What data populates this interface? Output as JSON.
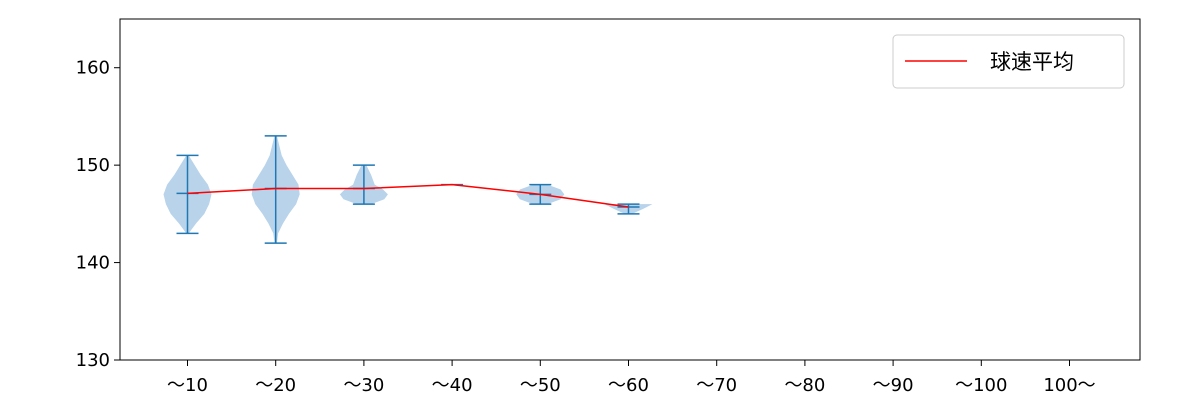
{
  "chart_data": {
    "type": "violin",
    "categories": [
      "〜10",
      "〜20",
      "〜30",
      "〜40",
      "〜50",
      "〜60",
      "〜70",
      "〜80",
      "〜90",
      "〜100",
      "100〜"
    ],
    "ylim": [
      130,
      165
    ],
    "yticks": [
      130,
      140,
      150,
      160
    ],
    "grid": false,
    "legend_position": "top-right",
    "colors": {
      "violin_fill": "#b8d3ea",
      "whisker": "#1f77b4",
      "mean_line": "#ff0000",
      "axes": "#000000"
    },
    "violins": [
      {
        "category": "〜10",
        "min": 143,
        "max": 151,
        "mean": 147.1,
        "density": [
          [
            143,
            0.05
          ],
          [
            144,
            0.35
          ],
          [
            145,
            0.7
          ],
          [
            146,
            0.9
          ],
          [
            147,
            1.0
          ],
          [
            148,
            0.85
          ],
          [
            149,
            0.55
          ],
          [
            150,
            0.3
          ],
          [
            151,
            0.05
          ]
        ]
      },
      {
        "category": "〜20",
        "min": 142,
        "max": 153,
        "mean": 147.6,
        "density": [
          [
            142,
            0.05
          ],
          [
            143,
            0.1
          ],
          [
            144,
            0.3
          ],
          [
            145,
            0.55
          ],
          [
            146,
            0.85
          ],
          [
            147,
            1.0
          ],
          [
            148,
            0.95
          ],
          [
            149,
            0.7
          ],
          [
            150,
            0.45
          ],
          [
            151,
            0.25
          ],
          [
            152,
            0.15
          ],
          [
            153,
            0.05
          ]
        ]
      },
      {
        "category": "〜30",
        "min": 146,
        "max": 150,
        "mean": 147.6,
        "density": [
          [
            146,
            0.3
          ],
          [
            146.5,
            0.85
          ],
          [
            147,
            1.0
          ],
          [
            147.5,
            0.8
          ],
          [
            148,
            0.45
          ],
          [
            149,
            0.3
          ],
          [
            150,
            0.1
          ]
        ]
      },
      {
        "category": "〜40",
        "min": 148,
        "max": 148,
        "mean": 148.0,
        "density": []
      },
      {
        "category": "〜50",
        "min": 146,
        "max": 148,
        "mean": 147.0,
        "density": [
          [
            146,
            0.3
          ],
          [
            146.5,
            0.85
          ],
          [
            147,
            1.0
          ],
          [
            147.5,
            0.85
          ],
          [
            148,
            0.3
          ]
        ]
      },
      {
        "category": "〜60",
        "min": 145,
        "max": 146,
        "mean": 145.7,
        "density": [
          [
            145,
            0.15
          ],
          [
            145.5,
            0.6
          ],
          [
            146,
            1.0
          ]
        ]
      }
    ],
    "mean_series": {
      "name": "球速平均",
      "categories": [
        "〜10",
        "〜20",
        "〜30",
        "〜40",
        "〜50",
        "〜60"
      ],
      "values": [
        147.1,
        147.6,
        147.6,
        148.0,
        147.0,
        145.7
      ]
    }
  }
}
